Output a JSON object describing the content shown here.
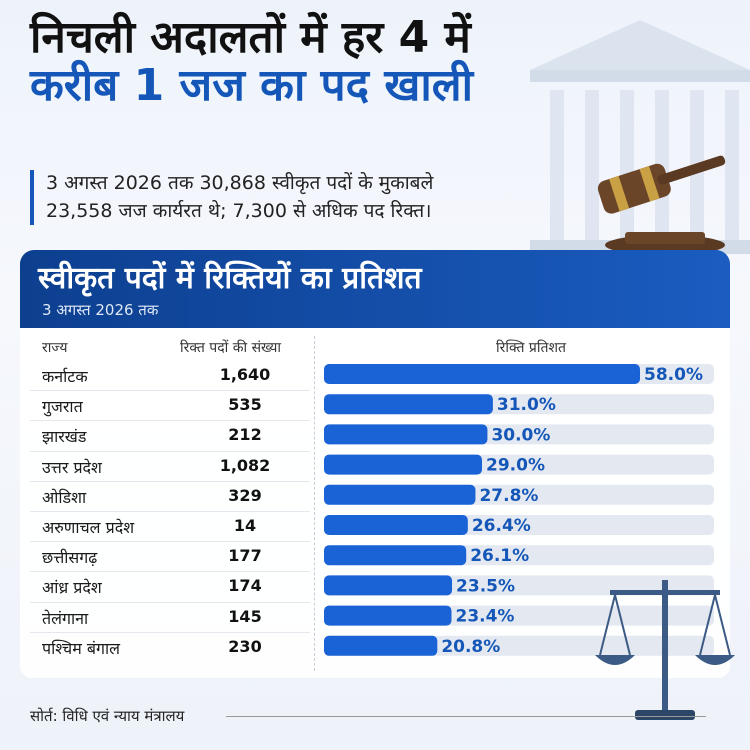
{
  "header": {
    "title_line1": "निचली अदालतों में हर 4 में",
    "title_line2": "करीब 1 जज का पद खाली",
    "summary_line1": "3 अगस्त 2026 तक 30,868 स्वीकृत पदों के मुकाबले",
    "summary_line2": "23,558 जज कार्यरत थे; 7,300 से अधिक पद रिक्त।"
  },
  "panel": {
    "title": "स्वीकृत पदों में रिक्तियों का प्रतिशत",
    "subtitle": "3 अगस्त 2026 तक",
    "col_state": "राज्य",
    "col_count": "रिक्त पदों की संख्या",
    "col_percent": "रिक्ति प्रतिशत"
  },
  "chart_data": {
    "type": "bar",
    "orientation": "horizontal",
    "title": "स्वीकृत पदों में रिक्तियों का प्रतिशत",
    "subtitle": "3 अगस्त 2026 तक",
    "categories": [
      "कर्नाटक",
      "गुजरात",
      "झारखंड",
      "उत्तर प्रदेश",
      "ओडिशा",
      "अरुणाचल प्रदेश",
      "छत्तीसगढ़",
      "आंध्र प्रदेश",
      "तेलंगाना",
      "पश्चिम बंगाल"
    ],
    "vacant_posts": [
      "1,640",
      "535",
      "212",
      "1,082",
      "329",
      "14",
      "177",
      "174",
      "145",
      "230"
    ],
    "values": [
      58.0,
      31.0,
      30.0,
      29.0,
      27.8,
      26.4,
      26.1,
      23.5,
      23.4,
      20.8
    ],
    "value_labels": [
      "58.0%",
      "31.0%",
      "30.0%",
      "29.0%",
      "27.8%",
      "26.4%",
      "26.1%",
      "23.5%",
      "23.4%",
      "20.8%"
    ],
    "xlim": [
      0,
      58
    ],
    "grid": false,
    "legend": "none"
  },
  "footer": {
    "source": "सोर्त: विधि एवं न्याय मंत्रालय"
  },
  "colors": {
    "accent": "#1557b8",
    "bar": "#1a63d6",
    "track": "#e4e9f1",
    "label": "#1557b8"
  }
}
